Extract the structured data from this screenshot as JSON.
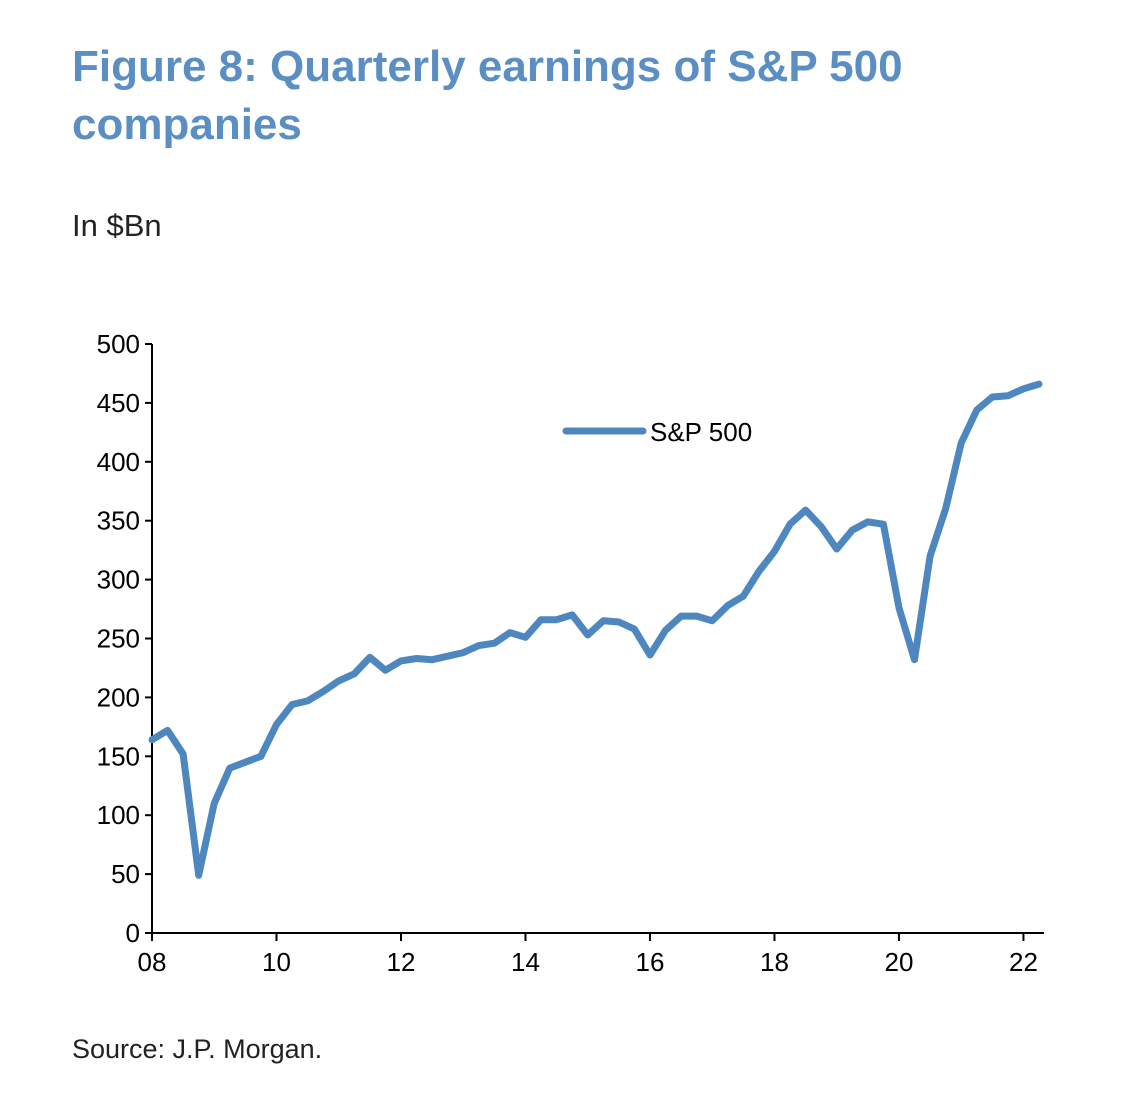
{
  "title": "Figure 8: Quarterly earnings of S&P 500 companies",
  "units_label": "In $Bn",
  "source": "Source: J.P. Morgan.",
  "colors": {
    "title": "#5b8fc4",
    "series": "#4e87c0",
    "axis": "#000000",
    "text": "#222222"
  },
  "chart_data": {
    "type": "line",
    "title": "Figure 8: Quarterly earnings of S&P 500 companies",
    "ylabel": "In $Bn",
    "xlabel": "",
    "ylim": [
      0,
      500
    ],
    "xlim": [
      2008,
      2022.33
    ],
    "y_ticks": [
      0,
      50,
      100,
      150,
      200,
      250,
      300,
      350,
      400,
      450,
      500
    ],
    "x_ticks": [
      {
        "value": 2008,
        "label": "08"
      },
      {
        "value": 2010,
        "label": "10"
      },
      {
        "value": 2012,
        "label": "12"
      },
      {
        "value": 2014,
        "label": "14"
      },
      {
        "value": 2016,
        "label": "16"
      },
      {
        "value": 2018,
        "label": "18"
      },
      {
        "value": 2020,
        "label": "20"
      },
      {
        "value": 2022,
        "label": "22"
      }
    ],
    "grid": false,
    "legend": {
      "position": "top-center",
      "entries": [
        "S&P 500"
      ]
    },
    "series": [
      {
        "name": "S&P 500",
        "x": [
          2008,
          2008.25,
          2008.5,
          2008.75,
          2009,
          2009.25,
          2009.5,
          2009.75,
          2010,
          2010.25,
          2010.5,
          2010.75,
          2011,
          2011.25,
          2011.5,
          2011.75,
          2012,
          2012.25,
          2012.5,
          2012.75,
          2013,
          2013.25,
          2013.5,
          2013.75,
          2014,
          2014.25,
          2014.5,
          2014.75,
          2015,
          2015.25,
          2015.5,
          2015.75,
          2016,
          2016.25,
          2016.5,
          2016.75,
          2017,
          2017.25,
          2017.5,
          2017.75,
          2018,
          2018.25,
          2018.5,
          2018.75,
          2019,
          2019.25,
          2019.5,
          2019.75,
          2020,
          2020.25,
          2020.5,
          2020.75,
          2021,
          2021.25,
          2021.5,
          2021.75,
          2022,
          2022.25
        ],
        "values": [
          164,
          172,
          152,
          49,
          110,
          140,
          145,
          150,
          177,
          194,
          197,
          205,
          214,
          220,
          234,
          223,
          231,
          233,
          232,
          235,
          238,
          244,
          246,
          255,
          251,
          266,
          266,
          270,
          253,
          265,
          264,
          258,
          236,
          257,
          269,
          269,
          265,
          278,
          286,
          307,
          324,
          347,
          359,
          345,
          326,
          342,
          349,
          347,
          276,
          232,
          320,
          360,
          416,
          444,
          455,
          456,
          462,
          466
        ]
      }
    ]
  }
}
